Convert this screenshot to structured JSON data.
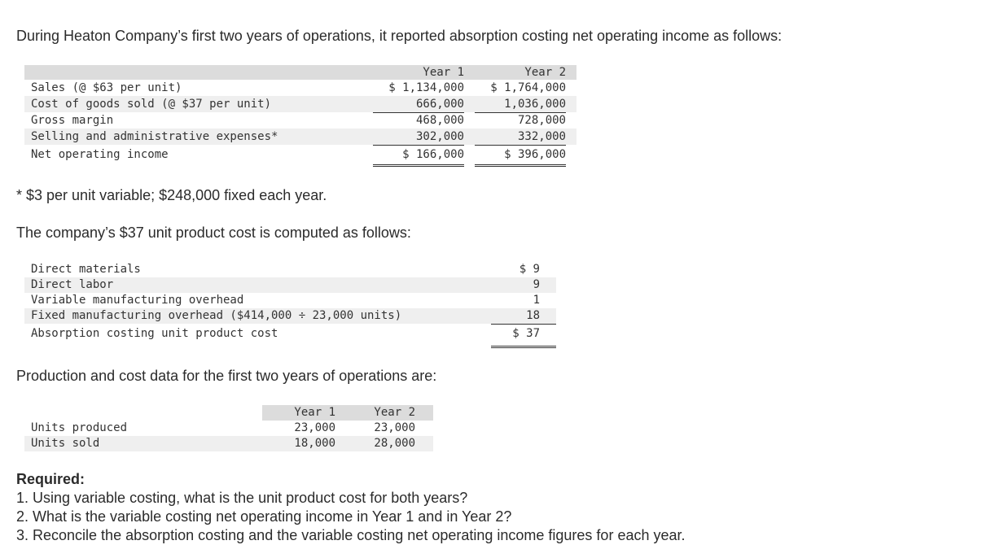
{
  "intro": "During Heaton Company’s first two years of operations, it reported absorption costing net operating income as follows:",
  "income": {
    "headers": [
      "Year 1",
      "Year 2"
    ],
    "rows": [
      {
        "label": "Sales (@ $63 per unit)",
        "y1": "$ 1,134,000",
        "y2": "$ 1,764,000"
      },
      {
        "label": "Cost of goods sold (@ $37 per unit)",
        "y1": "666,000",
        "y2": "1,036,000"
      },
      {
        "label": "Gross margin",
        "y1": "468,000",
        "y2": "728,000"
      },
      {
        "label": "Selling and administrative expenses*",
        "y1": "302,000",
        "y2": "332,000"
      },
      {
        "label": "Net operating income",
        "y1": "$ 166,000",
        "y2": "$ 396,000"
      }
    ]
  },
  "footnote": "* $3 per unit variable; $248,000 fixed each year.",
  "cost_intro": "The company’s $37 unit product cost is computed as follows:",
  "cost": {
    "rows": [
      {
        "label": "Direct materials",
        "value": "$ 9"
      },
      {
        "label": "Direct labor",
        "value": "9"
      },
      {
        "label": "Variable manufacturing overhead",
        "value": "1"
      },
      {
        "label": "Fixed manufacturing overhead ($414,000 ÷ 23,000 units)",
        "value": "18"
      },
      {
        "label": "Absorption costing unit product cost",
        "value": "$ 37"
      }
    ]
  },
  "prod_intro": "Production and cost data for the first two years of operations are:",
  "units": {
    "headers": [
      "Year 1",
      "Year 2"
    ],
    "rows": [
      {
        "label": "Units produced",
        "y1": "23,000",
        "y2": "23,000"
      },
      {
        "label": "Units sold",
        "y1": "18,000",
        "y2": "28,000"
      }
    ]
  },
  "required": {
    "title": "Required:",
    "items": [
      "1. Using variable costing, what is the unit product cost for both years?",
      "2. What is the variable costing net operating income in Year 1 and in Year 2?",
      "3. Reconcile the absorption costing and the variable costing net operating income figures for each year."
    ]
  }
}
